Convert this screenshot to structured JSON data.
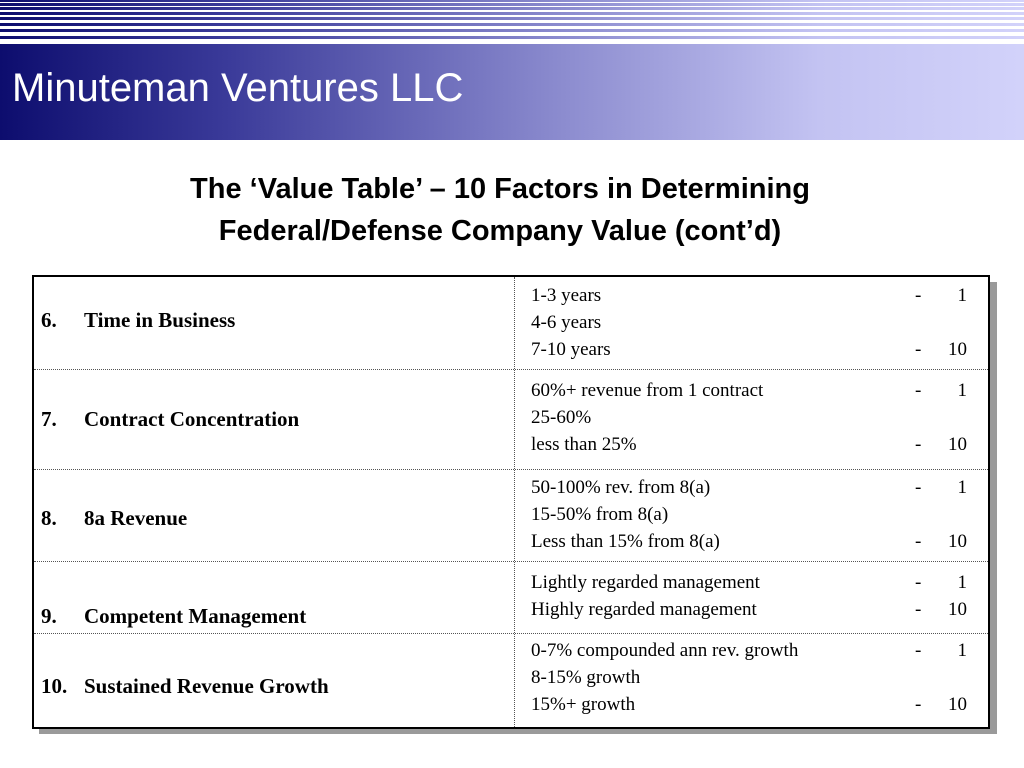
{
  "header": {
    "title": "Minuteman Ventures LLC"
  },
  "slide": {
    "title_line1": "The ‘Value Table’ – 10 Factors in Determining",
    "title_line2": "Federal/Defense Company Value (cont’d)"
  },
  "table": {
    "rows": [
      {
        "number": "6.",
        "factor": "Time in Business",
        "criteria": [
          {
            "text": "1-3 years",
            "dash": "-",
            "score": "1"
          },
          {
            "text": "4-6 years",
            "dash": "",
            "score": ""
          },
          {
            "text": "7-10 years",
            "dash": "-",
            "score": "10"
          }
        ]
      },
      {
        "number": "7.",
        "factor": "Contract Concentration",
        "criteria": [
          {
            "text": "60%+ revenue from 1 contract",
            "dash": "-",
            "score": "1"
          },
          {
            "text": "25-60%",
            "dash": "",
            "score": ""
          },
          {
            "text": "less than 25%",
            "dash": "-",
            "score": "10"
          }
        ]
      },
      {
        "number": "8.",
        "factor": "8a Revenue",
        "criteria": [
          {
            "text": "50-100% rev. from 8(a)",
            "dash": "-",
            "score": "1"
          },
          {
            "text": "15-50% from 8(a)",
            "dash": "",
            "score": ""
          },
          {
            "text": "Less than 15% from 8(a)",
            "dash": "-",
            "score": "10"
          }
        ]
      },
      {
        "number": "9.",
        "factor": "Competent Management",
        "criteria": [
          {
            "text": "Lightly regarded management",
            "dash": "-",
            "score": "1"
          },
          {
            "text": "Highly regarded management",
            "dash": "-",
            "score": "10"
          }
        ]
      },
      {
        "number": "10.",
        "factor": "Sustained Revenue Growth",
        "criteria": [
          {
            "text": "0-7% compounded ann rev. growth",
            "dash": "-",
            "score": "1"
          },
          {
            "text": "8-15% growth",
            "dash": "",
            "score": ""
          },
          {
            "text": "15%+ growth",
            "dash": "-",
            "score": "10"
          }
        ]
      }
    ]
  }
}
